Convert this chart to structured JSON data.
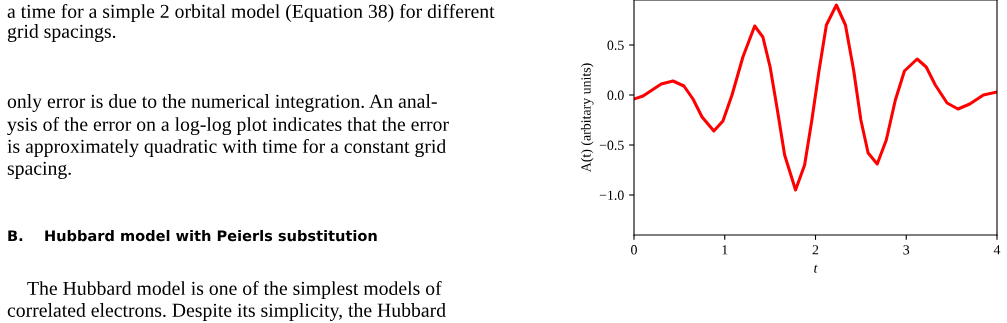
{
  "chart_data": {
    "type": "line",
    "xlabel": "t",
    "ylabel": "A(t) (arbitary units)",
    "x": [
      0,
      0.1,
      0.2,
      0.3,
      0.43,
      0.55,
      0.65,
      0.75,
      0.88,
      0.98,
      1.08,
      1.2,
      1.33,
      1.42,
      1.5,
      1.58,
      1.66,
      1.78,
      1.88,
      1.96,
      2.04,
      2.12,
      2.23,
      2.33,
      2.42,
      2.5,
      2.58,
      2.68,
      2.78,
      2.88,
      2.98,
      3.12,
      3.22,
      3.32,
      3.45,
      3.57,
      3.7,
      3.85,
      4.0
    ],
    "series": [
      {
        "color": "#ff0000",
        "values": [
          -0.04,
          -0.01,
          0.05,
          0.11,
          0.14,
          0.09,
          -0.04,
          -0.22,
          -0.36,
          -0.26,
          0.0,
          0.38,
          0.69,
          0.58,
          0.28,
          -0.15,
          -0.6,
          -0.95,
          -0.7,
          -0.25,
          0.25,
          0.7,
          0.9,
          0.7,
          0.25,
          -0.25,
          -0.58,
          -0.69,
          -0.45,
          -0.05,
          0.24,
          0.36,
          0.28,
          0.1,
          -0.08,
          -0.14,
          -0.09,
          0.0,
          0.03
        ]
      }
    ],
    "xlim": [
      0,
      4
    ],
    "xticks": [
      0,
      1,
      2,
      3,
      4
    ],
    "ylim": [
      -1.4,
      0.95
    ],
    "yticks": [
      {
        "value": -1.0,
        "label": "−1.0"
      },
      {
        "value": -0.5,
        "label": "−0.5"
      },
      {
        "value": 0.0,
        "label": "0.0"
      },
      {
        "value": 0.5,
        "label": "0.5"
      }
    ],
    "grid": false,
    "marker": "none",
    "line_style": "solid",
    "annotations": [
      "a time for a simple 2 orbital model (Equation 38) for different",
      "grid spacings.",
      "only error is due to the numerical integration. An anal-",
      "ysis of the error on a log-log plot indicates that the error",
      "is approximately quadratic with time for a constant grid",
      "spacing.",
      "B.    Hubbard model with Peierls substitution",
      "The Hubbard model is one of the simplest models of",
      "correlated electrons. Despite its simplicity, the Hubbard"
    ]
  }
}
